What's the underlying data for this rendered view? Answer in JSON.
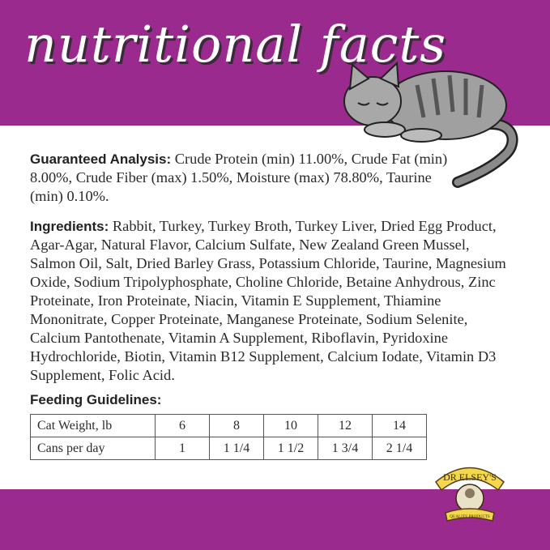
{
  "header": {
    "title": "nutritional facts"
  },
  "colors": {
    "brand_purple": "#9a2a8e"
  },
  "guaranteed_analysis": {
    "label": "Guaranteed Analysis:",
    "text": "Crude Protein (min) 11.00%, Crude Fat (min) 8.00%, Crude Fiber (max) 1.50%, Moisture (max) 78.80%, Taurine (min) 0.10%."
  },
  "ingredients": {
    "label": "Ingredients:",
    "text": "Rabbit, Turkey, Turkey Broth, Turkey Liver, Dried Egg Product, Agar-Agar, Natural Flavor, Calcium Sulfate, New Zealand Green Mussel, Salmon Oil, Salt, Dried Barley Grass, Potassium Chloride, Taurine, Magnesium Oxide, Sodium Tripolyphosphate, Choline Chloride, Betaine Anhydrous, Zinc Proteinate, Iron Proteinate, Niacin, Vitamin E Supplement, Thiamine Mononitrate, Copper Proteinate, Manganese Proteinate, Sodium Selenite, Calcium Pantothenate, Vitamin A Supplement, Riboflavin, Pyridoxine Hydrochloride, Biotin, Vitamin B12 Supplement, Calcium Iodate, Vitamin D3 Supplement, Folic Acid."
  },
  "feeding": {
    "label": "Feeding Guidelines:",
    "rows": [
      {
        "header": "Cat Weight, lb",
        "values": [
          "6",
          "8",
          "10",
          "12",
          "14"
        ]
      },
      {
        "header": "Cans per day",
        "values": [
          "1",
          "1 1/4",
          "1 1/2",
          "1 3/4",
          "2 1/4"
        ]
      }
    ]
  },
  "logo": {
    "text": "DR ELSEY'S",
    "tagline": "QUALITY PRODUCTS FOR CATS"
  },
  "illustration": "sleeping-tabby-cat"
}
